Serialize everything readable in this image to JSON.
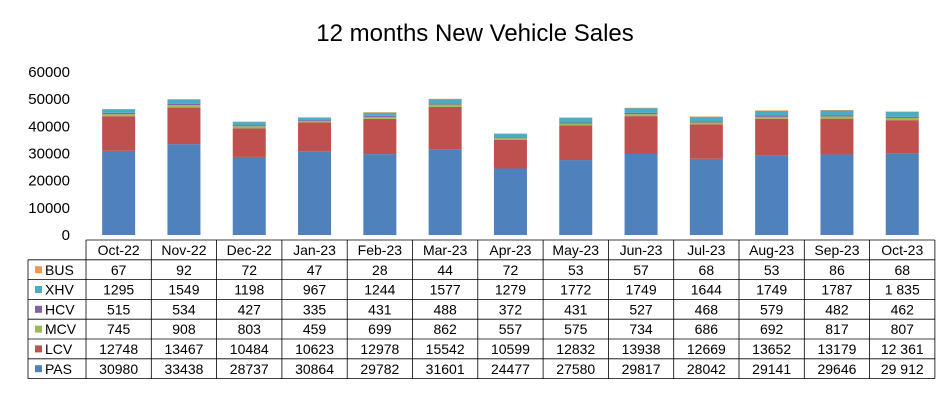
{
  "chart_data": {
    "type": "bar",
    "stacked": true,
    "title": "12 months New Vehicle Sales",
    "categories": [
      "Oct-22",
      "Nov-22",
      "Dec-22",
      "Jan-23",
      "Feb-23",
      "Mar-23",
      "Apr-23",
      "May-23",
      "Jun-23",
      "Jul-23",
      "Aug-23",
      "Sep-23",
      "Oct-23"
    ],
    "ylim": [
      0,
      60000
    ],
    "yticks": [
      "0",
      "10000",
      "20000",
      "30000",
      "40000",
      "50000",
      "60000"
    ],
    "grid": false,
    "legend": "data-table-left",
    "series": [
      {
        "name": "PAS",
        "color": "#4f81bd",
        "values": [
          30980,
          33438,
          28737,
          30864,
          29782,
          31601,
          24477,
          27580,
          29817,
          28042,
          29141,
          29646,
          29912
        ],
        "labels": [
          "30980",
          "33438",
          "28737",
          "30864",
          "29782",
          "31601",
          "24477",
          "27580",
          "29817",
          "28042",
          "29141",
          "29646",
          "29 912"
        ]
      },
      {
        "name": "LCV",
        "color": "#c0504d",
        "values": [
          12748,
          13467,
          10484,
          10623,
          12978,
          15542,
          10599,
          12832,
          13938,
          12669,
          13652,
          13179,
          12361
        ],
        "labels": [
          "12748",
          "13467",
          "10484",
          "10623",
          "12978",
          "15542",
          "10599",
          "12832",
          "13938",
          "12669",
          "13652",
          "13179",
          "12 361"
        ]
      },
      {
        "name": "MCV",
        "color": "#9bbb59",
        "values": [
          745,
          908,
          803,
          459,
          699,
          862,
          557,
          575,
          734,
          686,
          692,
          817,
          807
        ],
        "labels": [
          "745",
          "908",
          "803",
          "459",
          "699",
          "862",
          "557",
          "575",
          "734",
          "686",
          "692",
          "817",
          "807"
        ]
      },
      {
        "name": "HCV",
        "color": "#8064a2",
        "values": [
          515,
          534,
          427,
          335,
          431,
          488,
          372,
          431,
          527,
          468,
          579,
          482,
          462
        ],
        "labels": [
          "515",
          "534",
          "427",
          "335",
          "431",
          "488",
          "372",
          "431",
          "527",
          "468",
          "579",
          "482",
          "462"
        ]
      },
      {
        "name": "XHV",
        "color": "#4bacc6",
        "values": [
          1295,
          1549,
          1198,
          967,
          1244,
          1577,
          1279,
          1772,
          1749,
          1644,
          1749,
          1787,
          1835
        ],
        "labels": [
          "1295",
          "1549",
          "1198",
          "967",
          "1244",
          "1577",
          "1279",
          "1772",
          "1749",
          "1644",
          "1749",
          "1787",
          "1 835"
        ]
      },
      {
        "name": "BUS",
        "color": "#f79646",
        "values": [
          67,
          92,
          72,
          47,
          28,
          44,
          72,
          53,
          57,
          68,
          53,
          86,
          68
        ],
        "labels": [
          "67",
          "92",
          "72",
          "47",
          "28",
          "44",
          "72",
          "53",
          "57",
          "68",
          "53",
          "86",
          "68"
        ]
      }
    ]
  }
}
